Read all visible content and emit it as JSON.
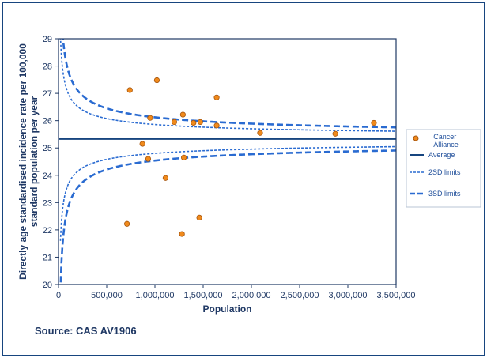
{
  "source_note": "Source: CAS AV1906",
  "colors": {
    "frame": "#17457f",
    "axis": "#1f3864",
    "limits": "#2a6bd1",
    "average": "#17457f",
    "points_fill": "#f08a1c",
    "points_stroke": "#a6550d"
  },
  "chart_data": {
    "type": "scatter",
    "title": "",
    "xlabel": "Population",
    "ylabel": "Directly age standardised incidence rate per 100,000 standard population per year",
    "xlim": [
      0,
      3500000
    ],
    "ylim": [
      20,
      29
    ],
    "x_ticks": [
      0,
      500000,
      1000000,
      1500000,
      2000000,
      2500000,
      3000000,
      3500000
    ],
    "x_tick_labels": [
      "0",
      "500,000",
      "1,000,000",
      "1,500,000",
      "2,000,000",
      "2,500,000",
      "3,000,000",
      "3,500,000"
    ],
    "y_ticks": [
      20,
      21,
      22,
      23,
      24,
      25,
      26,
      27,
      28,
      29
    ],
    "y_tick_labels": [
      "20",
      "21",
      "22",
      "23",
      "24",
      "25",
      "26",
      "27",
      "28",
      "29"
    ],
    "grid": false,
    "legend_position": "right",
    "average": 25.33,
    "series": [
      {
        "name": "Cancer Alliance",
        "type": "scatter",
        "points": [
          [
            740000,
            27.12
          ],
          [
            1020000,
            27.48
          ],
          [
            950000,
            26.1
          ],
          [
            1200000,
            25.95
          ],
          [
            1290000,
            26.22
          ],
          [
            1400000,
            25.92
          ],
          [
            1470000,
            25.95
          ],
          [
            1640000,
            26.85
          ],
          [
            1640000,
            25.82
          ],
          [
            2090000,
            25.55
          ],
          [
            2870000,
            25.52
          ],
          [
            3270000,
            25.92
          ],
          [
            870000,
            25.15
          ],
          [
            930000,
            24.6
          ],
          [
            1300000,
            24.65
          ],
          [
            1110000,
            23.9
          ],
          [
            710000,
            22.22
          ],
          [
            1460000,
            22.45
          ],
          [
            1280000,
            21.85
          ]
        ]
      },
      {
        "name": "Average",
        "type": "line"
      },
      {
        "name": "2SD limits",
        "type": "funnel",
        "sd": 2
      },
      {
        "name": "3SD limits",
        "type": "funnel",
        "sd": 3
      }
    ]
  }
}
